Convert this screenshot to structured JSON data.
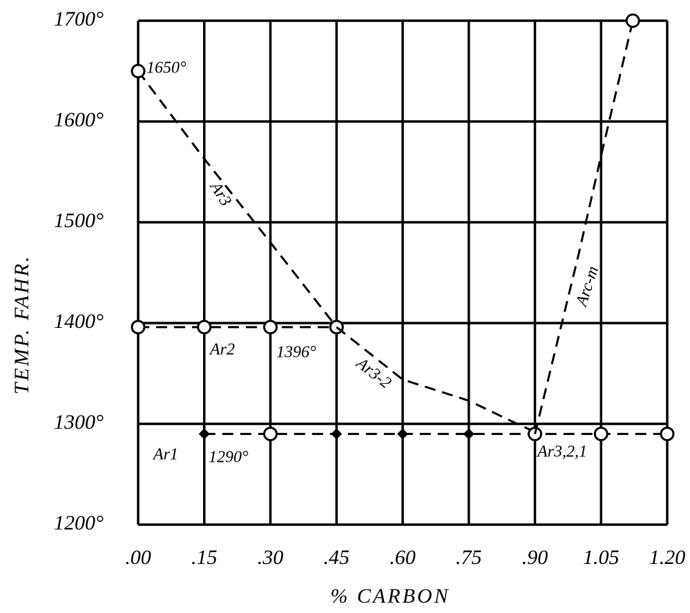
{
  "chart_data": {
    "type": "line",
    "xlabel": "% CARBON",
    "ylabel": "TEMP. FAHR.",
    "xlim": [
      0,
      1.2
    ],
    "ylim": [
      1200,
      1700
    ],
    "xticks": [
      {
        "value": 0,
        "label": ".00"
      },
      {
        "value": 0.15,
        "label": ".15"
      },
      {
        "value": 0.3,
        "label": ".30"
      },
      {
        "value": 0.45,
        "label": ".45"
      },
      {
        "value": 0.6,
        "label": ".60"
      },
      {
        "value": 0.75,
        "label": ".75"
      },
      {
        "value": 0.9,
        "label": ".90"
      },
      {
        "value": 1.05,
        "label": "1.05"
      },
      {
        "value": 1.2,
        "label": "1.20"
      }
    ],
    "yticks": [
      {
        "value": 1200,
        "label": "1200°"
      },
      {
        "value": 1300,
        "label": "1300°"
      },
      {
        "value": 1400,
        "label": "1400°"
      },
      {
        "value": 1500,
        "label": "1500°"
      },
      {
        "value": 1600,
        "label": "1600°"
      },
      {
        "value": 1700,
        "label": "1700°"
      }
    ],
    "grid": true,
    "series": [
      {
        "name": "Ar3",
        "color": "#000000",
        "x": [
          0,
          0.15,
          0.3,
          0.45
        ],
        "values": [
          1650,
          1563,
          1480,
          1396
        ],
        "marker": [
          "circle",
          null,
          null,
          "circle"
        ]
      },
      {
        "name": "Ar2",
        "color": "#000000",
        "x": [
          0,
          0.15,
          0.3,
          0.45
        ],
        "values": [
          1396,
          1396,
          1396,
          1396
        ],
        "marker": [
          "circle",
          "circle",
          "circle",
          "circle"
        ]
      },
      {
        "name": "Ar3-2",
        "color": "#000000",
        "x": [
          0.45,
          0.6,
          0.75,
          0.85,
          0.9
        ],
        "values": [
          1396,
          1344,
          1323,
          1302,
          1292
        ],
        "marker": [
          null,
          null,
          null,
          null,
          null
        ]
      },
      {
        "name": "Ar1",
        "color": "#000000",
        "x": [
          0.15,
          0.3,
          0.45,
          0.6,
          0.75,
          0.9,
          1.05,
          1.2
        ],
        "values": [
          1290,
          1290,
          1290,
          1290,
          1290,
          1290,
          1290,
          1290
        ],
        "marker": [
          "diamond",
          "circle",
          "diamond",
          "diamond",
          "diamond",
          "circle",
          "circle",
          "circle"
        ]
      },
      {
        "name": "Arc-m",
        "color": "#000000",
        "x": [
          0.9,
          1.0,
          1.05,
          1.122
        ],
        "values": [
          1290,
          1470,
          1566,
          1700
        ],
        "marker": [
          null,
          null,
          null,
          "circle"
        ]
      }
    ],
    "annotations": [
      "1650°",
      "1396°",
      "1290°",
      "Ar3,2,1"
    ]
  }
}
